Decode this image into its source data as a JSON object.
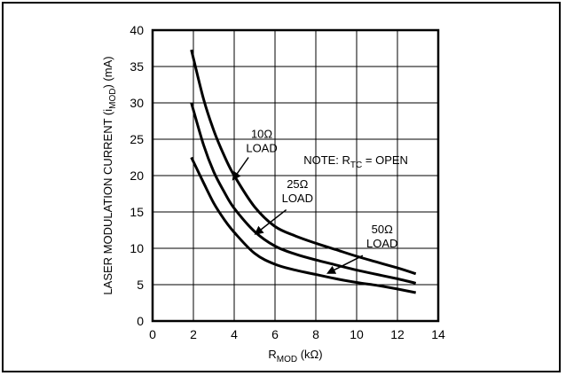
{
  "chart_data": {
    "type": "line",
    "xlabel": "RMOD (kΩ)",
    "xlabel_main": "R",
    "xlabel_sub": "MOD",
    "xlabel_rest": " (kΩ)",
    "ylabel": "LASER MODULATION CURRENT (iMOD) (mA)",
    "ylabel_pre": "LASER MODULATION  CURRENT (i",
    "ylabel_sub": "MOD",
    "ylabel_post": ") (mA)",
    "xlim": [
      0,
      14
    ],
    "ylim": [
      0,
      40
    ],
    "x_ticks": [
      "0",
      "2",
      "4",
      "6",
      "8",
      "10",
      "12",
      "14"
    ],
    "y_ticks": [
      "0",
      "5",
      "10",
      "15",
      "20",
      "25",
      "30",
      "35",
      "40"
    ],
    "grid": true,
    "note": {
      "prefix": "NOTE: R",
      "sub": "TC",
      "suffix": " = OPEN"
    },
    "series": [
      {
        "name": "10Ω LOAD",
        "x": [
          1.9,
          2.5,
          3,
          3.5,
          4,
          5,
          6,
          7,
          8,
          9,
          10,
          11,
          12,
          12.9
        ],
        "y": [
          37.3,
          30.5,
          26.2,
          22.8,
          20,
          15.7,
          13,
          11.7,
          10.7,
          9.8,
          8.9,
          8.1,
          7.3,
          6.5
        ]
      },
      {
        "name": "25Ω LOAD",
        "x": [
          1.9,
          2.5,
          3,
          3.5,
          4,
          5,
          6,
          7,
          8,
          9,
          10,
          11,
          12,
          12.9
        ],
        "y": [
          30,
          24.2,
          20.5,
          17.8,
          15.5,
          12.3,
          10.3,
          9.2,
          8.4,
          7.7,
          7,
          6.4,
          5.8,
          5.2
        ]
      },
      {
        "name": "50Ω LOAD",
        "x": [
          1.9,
          2.5,
          3,
          3.5,
          4,
          5,
          6,
          7,
          8,
          9,
          10,
          11,
          12,
          12.9
        ],
        "y": [
          22.5,
          19,
          16.2,
          14,
          12.2,
          9.3,
          7.8,
          7,
          6.4,
          5.8,
          5.3,
          4.9,
          4.4,
          3.9
        ]
      }
    ],
    "annotations": [
      {
        "line1": "10Ω",
        "line2": "LOAD",
        "text_x": 5.35,
        "text_y": 25.2,
        "arrow_from": [
          4.7,
          22.5
        ],
        "arrow_to": [
          3.95,
          19.5
        ]
      },
      {
        "line1": "25Ω",
        "line2": "LOAD",
        "text_x": 7.1,
        "text_y": 18.3,
        "arrow_from": [
          6.55,
          15.3
        ],
        "arrow_to": [
          5.05,
          12.0
        ]
      },
      {
        "line1": "50Ω",
        "line2": "LOAD",
        "text_x": 11.25,
        "text_y": 12.1,
        "arrow_from": [
          10.3,
          9.0
        ],
        "arrow_to": [
          8.6,
          6.6
        ]
      }
    ]
  }
}
